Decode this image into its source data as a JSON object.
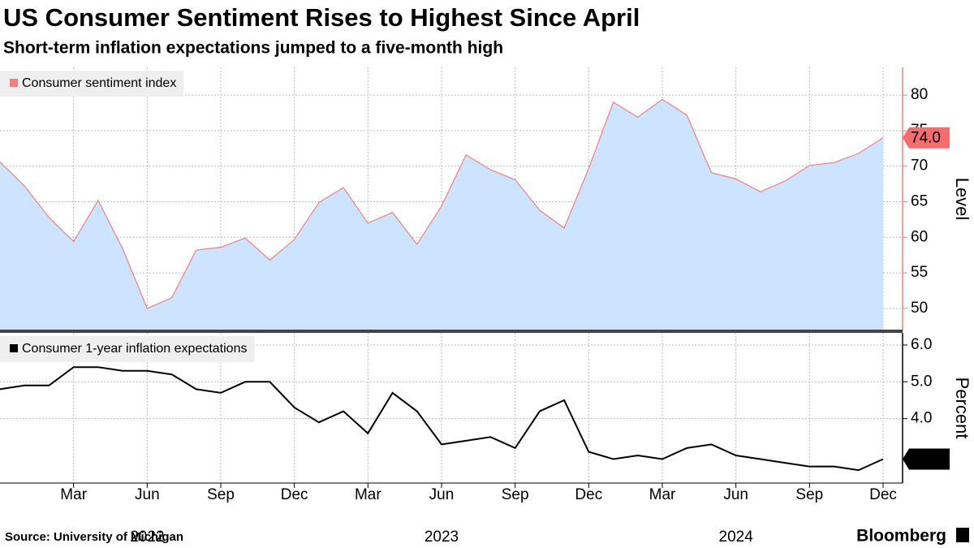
{
  "header": {
    "title": "US Consumer Sentiment Rises to Highest Since April",
    "subtitle": "Short-term inflation expectations jumped to a five-month high"
  },
  "chart_data": [
    {
      "type": "area",
      "legend": "Consumer sentiment index",
      "y_label": "Level",
      "color": "#f08080",
      "fill": "#cce4ff",
      "x": [
        "2021-12",
        "2022-01",
        "2022-02",
        "2022-03",
        "2022-04",
        "2022-05",
        "2022-06",
        "2022-07",
        "2022-08",
        "2022-09",
        "2022-10",
        "2022-11",
        "2022-12",
        "2023-01",
        "2023-02",
        "2023-03",
        "2023-04",
        "2023-05",
        "2023-06",
        "2023-07",
        "2023-08",
        "2023-09",
        "2023-10",
        "2023-11",
        "2023-12",
        "2024-01",
        "2024-02",
        "2024-03",
        "2024-04",
        "2024-05",
        "2024-06",
        "2024-07",
        "2024-08",
        "2024-09",
        "2024-10",
        "2024-11",
        "2024-12"
      ],
      "values": [
        70.6,
        67.2,
        62.8,
        59.4,
        65.2,
        58.4,
        50.0,
        51.5,
        58.2,
        58.6,
        59.9,
        56.8,
        59.7,
        64.9,
        67.0,
        62.0,
        63.5,
        59.0,
        64.4,
        71.6,
        69.5,
        68.1,
        63.8,
        61.3,
        69.7,
        79.0,
        76.9,
        79.4,
        77.2,
        69.1,
        68.2,
        66.4,
        67.9,
        70.1,
        70.5,
        71.8,
        74.0
      ],
      "value_labels": [
        null,
        null,
        null,
        null,
        null,
        null,
        null,
        null,
        null,
        null,
        null,
        null,
        null,
        null,
        null,
        null,
        null,
        null,
        null,
        null,
        null,
        null,
        null,
        null,
        null,
        null,
        null,
        null,
        null,
        null,
        null,
        null,
        null,
        null,
        null,
        null,
        "74.0"
      ],
      "ylim": [
        46.9,
        83.9
      ],
      "yticks": [
        50,
        55,
        60,
        65,
        70,
        75,
        80
      ],
      "grid": true
    },
    {
      "type": "line",
      "legend": "Consumer 1-year inflation expectations",
      "y_label": "Percent",
      "color": "#000000",
      "x": [
        "2021-12",
        "2022-01",
        "2022-02",
        "2022-03",
        "2022-04",
        "2022-05",
        "2022-06",
        "2022-07",
        "2022-08",
        "2022-09",
        "2022-10",
        "2022-11",
        "2022-12",
        "2023-01",
        "2023-02",
        "2023-03",
        "2023-04",
        "2023-05",
        "2023-06",
        "2023-07",
        "2023-08",
        "2023-09",
        "2023-10",
        "2023-11",
        "2023-12",
        "2024-01",
        "2024-02",
        "2024-03",
        "2024-04",
        "2024-05",
        "2024-06",
        "2024-07",
        "2024-08",
        "2024-09",
        "2024-10",
        "2024-11",
        "2024-12"
      ],
      "values": [
        4.8,
        4.9,
        4.9,
        5.4,
        5.4,
        5.3,
        5.3,
        5.2,
        4.8,
        4.7,
        5.0,
        5.0,
        4.3,
        3.9,
        4.2,
        3.6,
        4.7,
        4.2,
        3.3,
        3.4,
        3.5,
        3.2,
        4.2,
        4.5,
        3.1,
        2.9,
        3.0,
        2.9,
        3.2,
        3.3,
        3.0,
        2.9,
        2.8,
        2.7,
        2.7,
        2.6,
        2.9
      ],
      "ylim": [
        2.25,
        6.33
      ],
      "yticks": [
        {
          "value": 4,
          "label": "4.0"
        },
        {
          "value": 5,
          "label": "5.0"
        },
        {
          "value": 6,
          "label": "6.0"
        }
      ],
      "grid": true,
      "xticks": [
        {
          "value": "2022-03",
          "label": "Mar"
        },
        {
          "value": "2022-06",
          "label": "Jun"
        },
        {
          "value": "2022-09",
          "label": "Sep"
        },
        {
          "value": "2022-12",
          "label": "Dec"
        },
        {
          "value": "2023-03",
          "label": "Mar"
        },
        {
          "value": "2023-06",
          "label": "Jun"
        },
        {
          "value": "2023-09",
          "label": "Sep"
        },
        {
          "value": "2023-12",
          "label": "Dec"
        },
        {
          "value": "2024-03",
          "label": "Mar"
        },
        {
          "value": "2024-06",
          "label": "Jun"
        },
        {
          "value": "2024-09",
          "label": "Sep"
        },
        {
          "value": "2024-12",
          "label": "Dec"
        }
      ],
      "year_labels": [
        {
          "value": "2022-06",
          "label": "2022"
        },
        {
          "value": "2023-06",
          "label": "2023"
        },
        {
          "value": "2024-06",
          "label": "2024"
        }
      ]
    }
  ],
  "footer": {
    "source": "Source: University of Michigan",
    "brand": "Bloomberg"
  }
}
